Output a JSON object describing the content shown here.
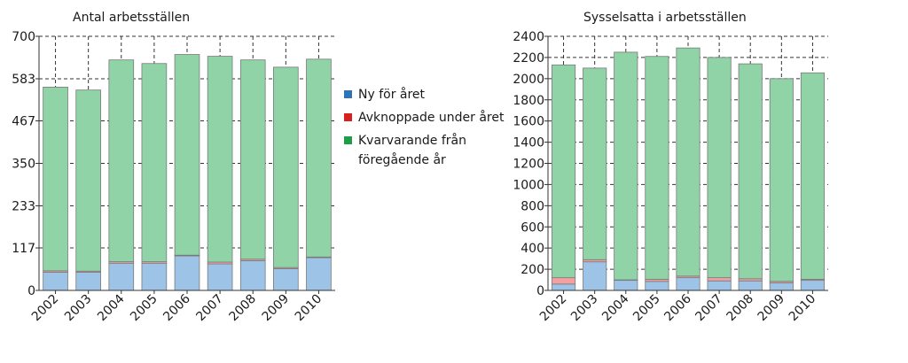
{
  "legend": [
    {
      "label": "Ny för året",
      "color": "#2e75b6"
    },
    {
      "label": "Avknoppade under året",
      "color": "#d9201e"
    },
    {
      "label": "Kvarvarande från\nföregående år",
      "color": "#1f9e4a"
    }
  ],
  "fill_colors": {
    "new": "#9dc3e6",
    "spin": "#f4a0a0",
    "remain": "#8fd3a6",
    "outline": "#7a7a7a",
    "grid": "#333333"
  },
  "chart_data": [
    {
      "type": "bar",
      "stacked": true,
      "title": "Antal arbetsställen",
      "categories": [
        "2002",
        "2003",
        "2004",
        "2005",
        "2006",
        "2007",
        "2008",
        "2009",
        "2010"
      ],
      "yticks": [
        "0",
        "117",
        "233",
        "350",
        "467",
        "583",
        "700"
      ],
      "ylim": [
        0,
        700
      ],
      "grid": true,
      "series": [
        {
          "name": "Ny för året",
          "values": [
            50,
            50,
            75,
            75,
            95,
            73,
            82,
            60,
            90
          ]
        },
        {
          "name": "Avknoppade under året",
          "values": [
            4,
            3,
            4,
            4,
            2,
            5,
            4,
            3,
            2
          ]
        },
        {
          "name": "Kvarvarande från föregående år",
          "values": [
            506,
            499,
            556,
            546,
            553,
            567,
            549,
            552,
            545
          ]
        }
      ]
    },
    {
      "type": "bar",
      "stacked": true,
      "title": "Sysselsatta i arbetsställen",
      "categories": [
        "2002",
        "2003",
        "2004",
        "2005",
        "2006",
        "2007",
        "2008",
        "2009",
        "2010"
      ],
      "yticks": [
        "0",
        "200",
        "400",
        "600",
        "800",
        "1000",
        "1200",
        "1400",
        "1600",
        "1800",
        "2000",
        "2200",
        "2400"
      ],
      "ylim": [
        0,
        2400
      ],
      "grid": true,
      "series": [
        {
          "name": "Ny för året",
          "values": [
            60,
            270,
            95,
            85,
            120,
            90,
            90,
            70,
            95
          ]
        },
        {
          "name": "Avknoppade under året",
          "values": [
            60,
            20,
            5,
            20,
            15,
            30,
            20,
            15,
            10
          ]
        },
        {
          "name": "Kvarvarande från föregående år",
          "values": [
            2010,
            1810,
            2150,
            2105,
            2155,
            2080,
            2030,
            1915,
            1950
          ]
        }
      ]
    }
  ]
}
